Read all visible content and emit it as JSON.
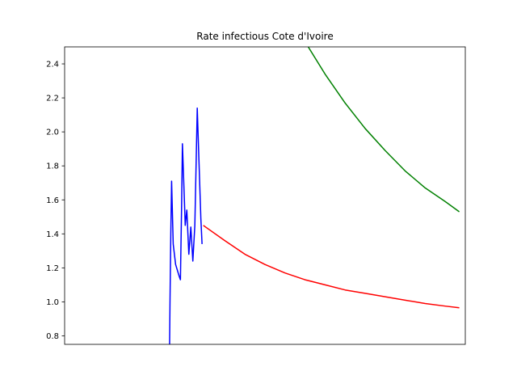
{
  "chart_data": {
    "type": "line",
    "title": "Rate infectious Cote d'Ivoire",
    "xlabel": "",
    "ylabel": "",
    "ylim": [
      0.75,
      2.5
    ],
    "xlim": [
      0,
      100
    ],
    "x_ticks_shown": false,
    "yticks": [
      0.8,
      1.0,
      1.2,
      1.4,
      1.6,
      1.8,
      2.0,
      2.2,
      2.4
    ],
    "ytick_labels": [
      "0.8",
      "1.0",
      "1.2",
      "1.4",
      "1.6",
      "1.8",
      "2.0",
      "2.2",
      "2.4"
    ],
    "grid": false,
    "legend": "none",
    "series": [
      {
        "color": "#0000ff",
        "points": [
          [
            26.2,
            0.75
          ],
          [
            26.3,
            1.0
          ],
          [
            26.5,
            1.4
          ],
          [
            26.7,
            1.71
          ],
          [
            27.1,
            1.34
          ],
          [
            27.7,
            1.22
          ],
          [
            28.6,
            1.15
          ],
          [
            28.9,
            1.13
          ],
          [
            29.2,
            1.57
          ],
          [
            29.4,
            1.93
          ],
          [
            29.8,
            1.66
          ],
          [
            30.1,
            1.45
          ],
          [
            30.5,
            1.54
          ],
          [
            31.0,
            1.28
          ],
          [
            31.5,
            1.44
          ],
          [
            32.0,
            1.24
          ],
          [
            32.5,
            1.45
          ],
          [
            33.1,
            2.14
          ],
          [
            33.5,
            1.85
          ],
          [
            34.0,
            1.49
          ],
          [
            34.3,
            1.34
          ]
        ]
      },
      {
        "color": "#ff0000",
        "points": [
          [
            34.6,
            1.45
          ],
          [
            40,
            1.36
          ],
          [
            45,
            1.28
          ],
          [
            50,
            1.22
          ],
          [
            55,
            1.17
          ],
          [
            60,
            1.13
          ],
          [
            65,
            1.1
          ],
          [
            70,
            1.07
          ],
          [
            75,
            1.05
          ],
          [
            80,
            1.03
          ],
          [
            85,
            1.01
          ],
          [
            90,
            0.99
          ],
          [
            95,
            0.975
          ],
          [
            98.5,
            0.965
          ]
        ]
      },
      {
        "color": "#008000",
        "points": [
          [
            60.8,
            2.5
          ],
          [
            65,
            2.34
          ],
          [
            70,
            2.17
          ],
          [
            75,
            2.02
          ],
          [
            80,
            1.89
          ],
          [
            85,
            1.77
          ],
          [
            90,
            1.67
          ],
          [
            95,
            1.59
          ],
          [
            98.5,
            1.53
          ]
        ]
      }
    ]
  }
}
